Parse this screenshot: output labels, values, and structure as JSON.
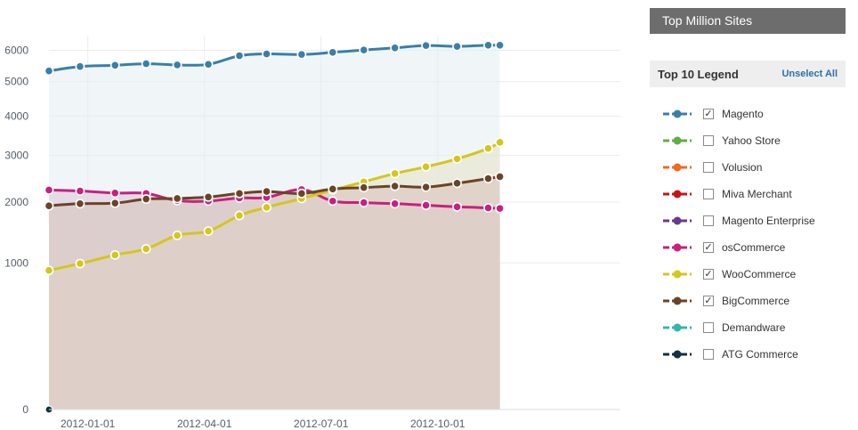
{
  "panel": {
    "title": "Top Million Sites",
    "legend_title": "Top 10 Legend",
    "unselect_all": "Unselect All"
  },
  "legend": [
    {
      "label": "Magento",
      "color": "#3a7fa8",
      "checked": true
    },
    {
      "label": "Yahoo Store",
      "color": "#5fae46",
      "checked": false
    },
    {
      "label": "Volusion",
      "color": "#f06a22",
      "checked": false
    },
    {
      "label": "Miva Merchant",
      "color": "#c41515",
      "checked": false
    },
    {
      "label": "Magento Enterprise",
      "color": "#6b3a8e",
      "checked": false
    },
    {
      "label": "osCommerce",
      "color": "#c8207e",
      "checked": true
    },
    {
      "label": "WooCommerce",
      "color": "#d4c61c",
      "checked": true
    },
    {
      "label": "BigCommerce",
      "color": "#6b4426",
      "checked": true
    },
    {
      "label": "Demandware",
      "color": "#33b5b0",
      "checked": false
    },
    {
      "label": "ATG Commerce",
      "color": "#153042",
      "checked": false
    }
  ],
  "chart_data": {
    "type": "area",
    "yticks": [
      0,
      1000,
      2000,
      3000,
      4000,
      5000,
      6000
    ],
    "ylim": [
      0,
      6500
    ],
    "xlim": [
      0,
      14.7
    ],
    "xticks": [
      {
        "label": "2012-01-01",
        "x": 1
      },
      {
        "label": "2012-04-01",
        "x": 4
      },
      {
        "label": "2012-07-01",
        "x": 7
      },
      {
        "label": "2012-10-01",
        "x": 10
      }
    ],
    "grid": true,
    "series": [
      {
        "name": "Magento",
        "color": "#3a7fa8",
        "fill": "#e6f0f4",
        "points": [
          [
            0,
            5330
          ],
          [
            0.8,
            5470
          ],
          [
            1.7,
            5510
          ],
          [
            2.5,
            5560
          ],
          [
            3.3,
            5520
          ],
          [
            4.1,
            5540
          ],
          [
            4.9,
            5820
          ],
          [
            5.6,
            5880
          ],
          [
            6.5,
            5860
          ],
          [
            7.3,
            5930
          ],
          [
            8.1,
            6010
          ],
          [
            8.9,
            6080
          ],
          [
            9.7,
            6160
          ],
          [
            10.5,
            6130
          ],
          [
            11.3,
            6170
          ],
          [
            11.6,
            6170
          ]
        ]
      },
      {
        "name": "osCommerce",
        "color": "#c8207e",
        "fill": "#dccadc",
        "points": [
          [
            0,
            2240
          ],
          [
            0.8,
            2220
          ],
          [
            1.7,
            2180
          ],
          [
            2.5,
            2170
          ],
          [
            3.3,
            2030
          ],
          [
            4.1,
            2020
          ],
          [
            4.9,
            2080
          ],
          [
            5.6,
            2090
          ],
          [
            6.5,
            2250
          ],
          [
            7.3,
            2020
          ],
          [
            8.1,
            1990
          ],
          [
            8.9,
            1970
          ],
          [
            9.7,
            1940
          ],
          [
            10.5,
            1910
          ],
          [
            11.3,
            1890
          ],
          [
            11.6,
            1880
          ]
        ]
      },
      {
        "name": "WooCommerce",
        "color": "#d4c61c",
        "fill": "#e8e5cc",
        "points": [
          [
            0,
            900
          ],
          [
            0.8,
            990
          ],
          [
            1.7,
            1110
          ],
          [
            2.5,
            1200
          ],
          [
            3.3,
            1410
          ],
          [
            4.1,
            1480
          ],
          [
            4.9,
            1750
          ],
          [
            5.6,
            1900
          ],
          [
            6.5,
            2070
          ],
          [
            7.3,
            2240
          ],
          [
            8.1,
            2410
          ],
          [
            8.9,
            2590
          ],
          [
            9.7,
            2740
          ],
          [
            10.5,
            2920
          ],
          [
            11.3,
            3170
          ],
          [
            11.6,
            3320
          ]
        ]
      },
      {
        "name": "BigCommerce",
        "color": "#6b4426",
        "fill": "#d8c5be",
        "points": [
          [
            0,
            1930
          ],
          [
            0.8,
            1970
          ],
          [
            1.7,
            1980
          ],
          [
            2.5,
            2060
          ],
          [
            3.3,
            2070
          ],
          [
            4.1,
            2100
          ],
          [
            4.9,
            2170
          ],
          [
            5.6,
            2210
          ],
          [
            6.5,
            2170
          ],
          [
            7.3,
            2260
          ],
          [
            8.1,
            2290
          ],
          [
            8.9,
            2320
          ],
          [
            9.7,
            2300
          ],
          [
            10.5,
            2380
          ],
          [
            11.3,
            2480
          ],
          [
            11.6,
            2520
          ]
        ]
      }
    ]
  }
}
